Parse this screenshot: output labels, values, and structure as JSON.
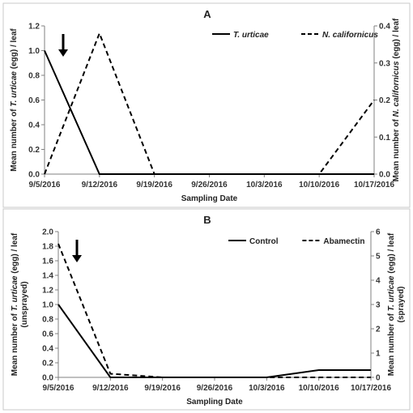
{
  "chart_data": [
    {
      "type": "line",
      "panel_label": "A",
      "xlabel": "Sampling Date",
      "categories": [
        "9/5/2016",
        "9/12/2016",
        "9/19/2016",
        "9/26/2016",
        "10/3/2016",
        "10/10/2016",
        "10/17/2016"
      ],
      "ylabel_left": {
        "prefix": "Mean number of ",
        "italic": "T. urticae",
        "suffix": " (egg) / leaf"
      },
      "ylabel_right": {
        "prefix": "Mean number of ",
        "italic": "N. californicus",
        "suffix": " (egg) / leaf"
      },
      "ylim_left": [
        0,
        1.2
      ],
      "yticks_left": [
        "0.0",
        "0.2",
        "0.4",
        "0.6",
        "0.8",
        "1.0",
        "1.2"
      ],
      "ylim_right": [
        0,
        0.4
      ],
      "yticks_right": [
        "0.0",
        "0.1",
        "0.2",
        "0.3",
        "0.4"
      ],
      "legend_position": "top-right",
      "arrow_at": "9/5/2016",
      "series": [
        {
          "name": "T. urticae",
          "axis": "left",
          "style": "solid",
          "color": "#000000",
          "values": [
            1.0,
            0.0,
            0.0,
            0.0,
            0.0,
            0.0,
            0.0
          ]
        },
        {
          "name": "N. californicus",
          "axis": "right",
          "style": "dashed",
          "color": "#000000",
          "values": [
            0.0,
            0.38,
            0.0,
            0.0,
            0.0,
            0.0,
            0.2
          ]
        }
      ]
    },
    {
      "type": "line",
      "panel_label": "B",
      "xlabel": "Sampling Date",
      "categories": [
        "9/5/2016",
        "9/12/2016",
        "9/19/2016",
        "9/26/2016",
        "10/3/2016",
        "10/10/2016",
        "10/17/2016"
      ],
      "ylabel_left": {
        "prefix": "Mean number of ",
        "italic": "T. urticae",
        "suffix": " (egg) / leaf",
        "line2": "(unsprayed)"
      },
      "ylabel_right": {
        "prefix": "Mean number of ",
        "italic": "T. urticae",
        "suffix": " (egg) / leaf",
        "line2": "(sprayed)"
      },
      "ylim_left": [
        0,
        2.0
      ],
      "yticks_left": [
        "0.0",
        "0.2",
        "0.4",
        "0.6",
        "0.8",
        "1.0",
        "1.2",
        "1.4",
        "1.6",
        "1.8",
        "2.0"
      ],
      "ylim_right": [
        0,
        6
      ],
      "yticks_right": [
        "0",
        "1",
        "2",
        "3",
        "4",
        "5",
        "6"
      ],
      "legend_position": "top-right",
      "arrow_at": "9/5/2016",
      "series": [
        {
          "name": "Control",
          "axis": "left",
          "style": "solid",
          "color": "#000000",
          "values": [
            1.0,
            0.0,
            0.0,
            0.0,
            0.0,
            0.1,
            0.1
          ]
        },
        {
          "name": "Abamectin",
          "axis": "right",
          "style": "dashed",
          "color": "#000000",
          "values": [
            5.5,
            0.15,
            0.0,
            0.0,
            0.0,
            0.0,
            0.0
          ]
        }
      ]
    }
  ]
}
